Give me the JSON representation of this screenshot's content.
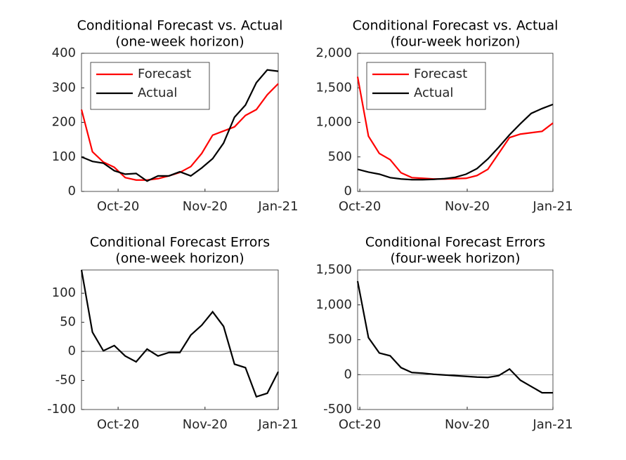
{
  "chart_data": [
    {
      "type": "line",
      "title": "Conditional Forecast vs. Actual",
      "subtitle": "(one-week horizon)",
      "x": [
        0,
        1,
        2,
        3,
        4,
        5,
        6,
        7,
        8,
        9,
        10,
        11,
        12,
        13,
        14,
        15,
        16,
        17,
        18
      ],
      "xlim": [
        0,
        18
      ],
      "xticks": [
        {
          "value": 3.35,
          "label": "Oct-20"
        },
        {
          "value": 11.3,
          "label": "Nov-20"
        },
        {
          "value": 18,
          "label": "Jan-21"
        }
      ],
      "ylim": [
        0,
        400
      ],
      "yticks": [
        0,
        100,
        200,
        300,
        400
      ],
      "legend": "upper left",
      "series": [
        {
          "name": "Forecast",
          "color": "#ff0000",
          "values": [
            237,
            115,
            85,
            70,
            40,
            33,
            33,
            37,
            45,
            55,
            72,
            110,
            163,
            175,
            187,
            220,
            237,
            280,
            312
          ]
        },
        {
          "name": "Actual",
          "color": "#000000",
          "values": [
            100,
            87,
            82,
            60,
            50,
            52,
            30,
            45,
            45,
            57,
            45,
            68,
            95,
            140,
            215,
            250,
            315,
            352,
            348
          ]
        }
      ]
    },
    {
      "type": "line",
      "title": "Conditional Forecast vs. Actual",
      "subtitle": "(four-week horizon)",
      "x": [
        0,
        1,
        2,
        3,
        4,
        5,
        6,
        7,
        8,
        9,
        10,
        11,
        12,
        13,
        14,
        15,
        16,
        17,
        18
      ],
      "xlim": [
        0,
        18
      ],
      "xticks": [
        {
          "value": 0.2,
          "label": "Oct-20"
        },
        {
          "value": 10.1,
          "label": "Nov-20"
        },
        {
          "value": 18,
          "label": "Jan-21"
        }
      ],
      "ylim": [
        0,
        2000
      ],
      "yticks": [
        0,
        500,
        {
          "value": 1000,
          "label": "1,000"
        },
        {
          "value": 1500,
          "label": "1,500"
        },
        {
          "value": 2000,
          "label": "2,000"
        }
      ],
      "legend": "upper left",
      "series": [
        {
          "name": "Forecast",
          "color": "#ff0000",
          "values": [
            1660,
            800,
            550,
            460,
            270,
            200,
            190,
            180,
            180,
            185,
            190,
            230,
            320,
            550,
            780,
            830,
            850,
            870,
            990
          ]
        },
        {
          "name": "Actual",
          "color": "#000000",
          "values": [
            320,
            280,
            250,
            200,
            180,
            170,
            170,
            175,
            185,
            205,
            250,
            330,
            470,
            640,
            820,
            980,
            1130,
            1200,
            1260
          ]
        }
      ]
    },
    {
      "type": "line",
      "title": "Conditional Forecast Errors",
      "subtitle": "(one-week horizon)",
      "x": [
        0,
        1,
        2,
        3,
        4,
        5,
        6,
        7,
        8,
        9,
        10,
        11,
        12,
        13,
        14,
        15,
        16,
        17,
        18
      ],
      "xlim": [
        0,
        18
      ],
      "xticks": [
        {
          "value": 3.35,
          "label": "Oct-20"
        },
        {
          "value": 11.3,
          "label": "Nov-20"
        },
        {
          "value": 18,
          "label": "Jan-21"
        }
      ],
      "ylim": [
        -100,
        140
      ],
      "yticks": [
        -100,
        -50,
        0,
        50,
        100
      ],
      "zero_line": true,
      "series": [
        {
          "color": "#000000",
          "values": [
            140,
            33,
            1,
            10,
            -8,
            -18,
            4,
            -8,
            -2,
            -2,
            28,
            45,
            68,
            43,
            -22,
            -28,
            -78,
            -72,
            -35
          ]
        }
      ]
    },
    {
      "type": "line",
      "title": "Conditional Forecast Errors",
      "subtitle": "(four-week horizon)",
      "x": [
        0,
        1,
        2,
        3,
        4,
        5,
        6,
        7,
        8,
        9,
        10,
        11,
        12,
        13,
        14,
        15,
        16,
        17,
        18
      ],
      "xlim": [
        0,
        18
      ],
      "xticks": [
        {
          "value": 0.2,
          "label": "Oct-20"
        },
        {
          "value": 10.1,
          "label": "Nov-20"
        },
        {
          "value": 18,
          "label": "Jan-21"
        }
      ],
      "ylim": [
        -500,
        1500
      ],
      "yticks": [
        -500,
        0,
        500,
        {
          "value": 1000,
          "label": "1,000"
        },
        {
          "value": 1500,
          "label": "1,500"
        }
      ],
      "zero_line": true,
      "series": [
        {
          "color": "#000000",
          "values": [
            1340,
            530,
            310,
            270,
            100,
            30,
            20,
            5,
            -5,
            -15,
            -25,
            -35,
            -40,
            -15,
            80,
            -80,
            -170,
            -260,
            -260
          ]
        }
      ]
    }
  ]
}
